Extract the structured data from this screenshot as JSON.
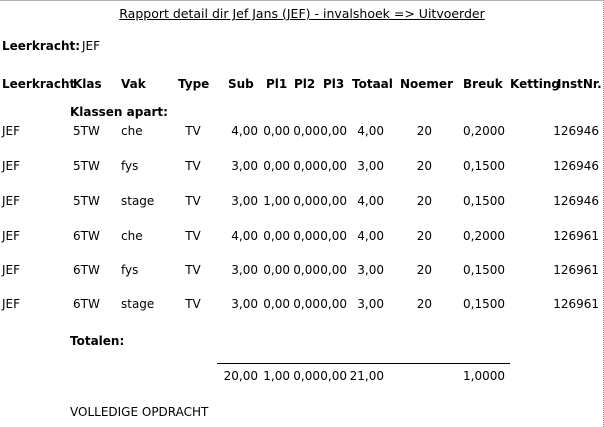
{
  "report": {
    "title": "Rapport detail dir Jef Jans (JEF) - invalshoek => Uitvoerder",
    "teacher_label": "Leerkracht:",
    "teacher_value": "JEF"
  },
  "columns": {
    "leerkracht": "Leerkracht",
    "klas": "Klas",
    "vak": "Vak",
    "type": "Type",
    "sub": "Sub",
    "pl1": "Pl1",
    "pl2": "Pl2",
    "pl3": "Pl3",
    "totaal": "Totaal",
    "noemer": "Noemer",
    "breuk": "Breuk",
    "ketting": "Ketting",
    "instnr": "InstNr."
  },
  "section_label": "Klassen apart:",
  "rows": [
    {
      "leerkracht": "JEF",
      "klas": "5TW",
      "vak": "che",
      "type": "TV",
      "sub": "4,00",
      "pl1": "0,00",
      "pl2": "0,00",
      "pl3": "0,00",
      "totaal": "4,00",
      "noemer": "20",
      "breuk": "0,2000",
      "instnr": "126946"
    },
    {
      "leerkracht": "JEF",
      "klas": "5TW",
      "vak": "fys",
      "type": "TV",
      "sub": "3,00",
      "pl1": "0,00",
      "pl2": "0,00",
      "pl3": "0,00",
      "totaal": "3,00",
      "noemer": "20",
      "breuk": "0,1500",
      "instnr": "126946"
    },
    {
      "leerkracht": "JEF",
      "klas": "5TW",
      "vak": "stage",
      "type": "TV",
      "sub": "3,00",
      "pl1": "1,00",
      "pl2": "0,00",
      "pl3": "0,00",
      "totaal": "4,00",
      "noemer": "20",
      "breuk": "0,1500",
      "instnr": "126946"
    },
    {
      "leerkracht": "JEF",
      "klas": "6TW",
      "vak": "che",
      "type": "TV",
      "sub": "4,00",
      "pl1": "0,00",
      "pl2": "0,00",
      "pl3": "0,00",
      "totaal": "4,00",
      "noemer": "20",
      "breuk": "0,2000",
      "instnr": "126961"
    },
    {
      "leerkracht": "JEF",
      "klas": "6TW",
      "vak": "fys",
      "type": "TV",
      "sub": "3,00",
      "pl1": "0,00",
      "pl2": "0,00",
      "pl3": "0,00",
      "totaal": "3,00",
      "noemer": "20",
      "breuk": "0,1500",
      "instnr": "126961"
    },
    {
      "leerkracht": "JEF",
      "klas": "6TW",
      "vak": "stage",
      "type": "TV",
      "sub": "3,00",
      "pl1": "0,00",
      "pl2": "0,00",
      "pl3": "0,00",
      "totaal": "3,00",
      "noemer": "20",
      "breuk": "0,1500",
      "instnr": "126961"
    }
  ],
  "totals": {
    "label": "Totalen:",
    "sub": "20,00",
    "pl1": "1,00",
    "pl2": "0,00",
    "pl3": "0,00",
    "totaal": "21,00",
    "breuk": "1,0000"
  },
  "footer": "VOLLEDIGE OPDRACHT"
}
